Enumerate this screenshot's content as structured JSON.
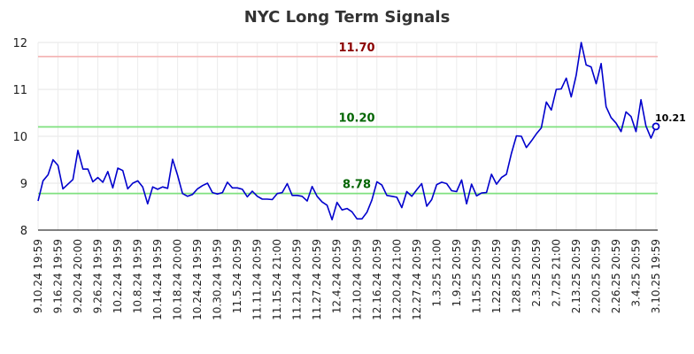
{
  "chart_data": {
    "type": "line",
    "title": "NYC Long Term Signals",
    "xlabel": "",
    "ylabel": "",
    "ylim": [
      8,
      12
    ],
    "yticks": [
      8,
      9,
      10,
      11,
      12
    ],
    "grid": true,
    "xtick_labels": [
      "9.10.24 19:59",
      "9.16.24 19:59",
      "9.20.24 20:00",
      "9.26.24 19:59",
      "10.2.24 19:59",
      "10.8.24 19:59",
      "10.14.24 19:59",
      "10.18.24 20:00",
      "10.24.24 19:59",
      "10.30.24 19:59",
      "11.5.24 20:59",
      "11.11.24 20:59",
      "11.15.24 21:00",
      "11.21.24 20:59",
      "11.27.24 20:59",
      "12.4.24 20:59",
      "12.10.24 20:59",
      "12.16.24 20:59",
      "12.20.24 21:00",
      "12.27.24 20:59",
      "1.3.25 21:00",
      "1.9.25 20:59",
      "1.15.25 20:59",
      "1.22.25 20:59",
      "1.28.25 20:59",
      "2.3.25 20:59",
      "2.7.25 21:00",
      "2.13.25 20:59",
      "2.20.25 20:59",
      "2.26.25 20:59",
      "3.4.25 20:59",
      "3.10.25 19:59"
    ],
    "series": [
      {
        "color": "#0000cc",
        "values": [
          8.62,
          9.05,
          9.18,
          9.5,
          9.38,
          8.88,
          8.98,
          9.08,
          9.7,
          9.3,
          9.3,
          9.03,
          9.12,
          9.02,
          9.25,
          8.9,
          9.32,
          9.27,
          8.88,
          9.0,
          9.05,
          8.92,
          8.56,
          8.92,
          8.87,
          8.92,
          8.89,
          9.51,
          9.17,
          8.78,
          8.72,
          8.76,
          8.88,
          8.95,
          9.0,
          8.8,
          8.77,
          8.8,
          9.02,
          8.9,
          8.9,
          8.87,
          8.71,
          8.83,
          8.72,
          8.66,
          8.66,
          8.65,
          8.78,
          8.8,
          8.99,
          8.74,
          8.74,
          8.72,
          8.62,
          8.93,
          8.72,
          8.6,
          8.53,
          8.22,
          8.59,
          8.43,
          8.46,
          8.39,
          8.24,
          8.24,
          8.38,
          8.64,
          9.03,
          8.96,
          8.74,
          8.72,
          8.7,
          8.48,
          8.82,
          8.72,
          8.86,
          8.99,
          8.51,
          8.65,
          8.97,
          9.02,
          8.99,
          8.84,
          8.82,
          9.07,
          8.56,
          8.98,
          8.73,
          8.79,
          8.8,
          9.19,
          8.98,
          9.12,
          9.19,
          9.64,
          10.01,
          10.0,
          9.76,
          9.9,
          10.05,
          10.18,
          10.73,
          10.56,
          11.0,
          11.01,
          11.24,
          10.84,
          11.3,
          12.0,
          11.52,
          11.48,
          11.12,
          11.55,
          10.63,
          10.4,
          10.28,
          10.1,
          10.52,
          10.42,
          10.1,
          10.78,
          10.22,
          9.96,
          10.21
        ]
      }
    ],
    "reference_lines": [
      {
        "label": "11.70",
        "value": 11.7,
        "line_color": "#f4b6b6",
        "text_color": "#8b0000"
      },
      {
        "label": "10.20",
        "value": 10.2,
        "line_color": "#7fe07f",
        "text_color": "#006400"
      },
      {
        "label": "8.78",
        "value": 8.78,
        "line_color": "#7fe07f",
        "text_color": "#006400"
      }
    ],
    "last_value_label": "10.21"
  }
}
